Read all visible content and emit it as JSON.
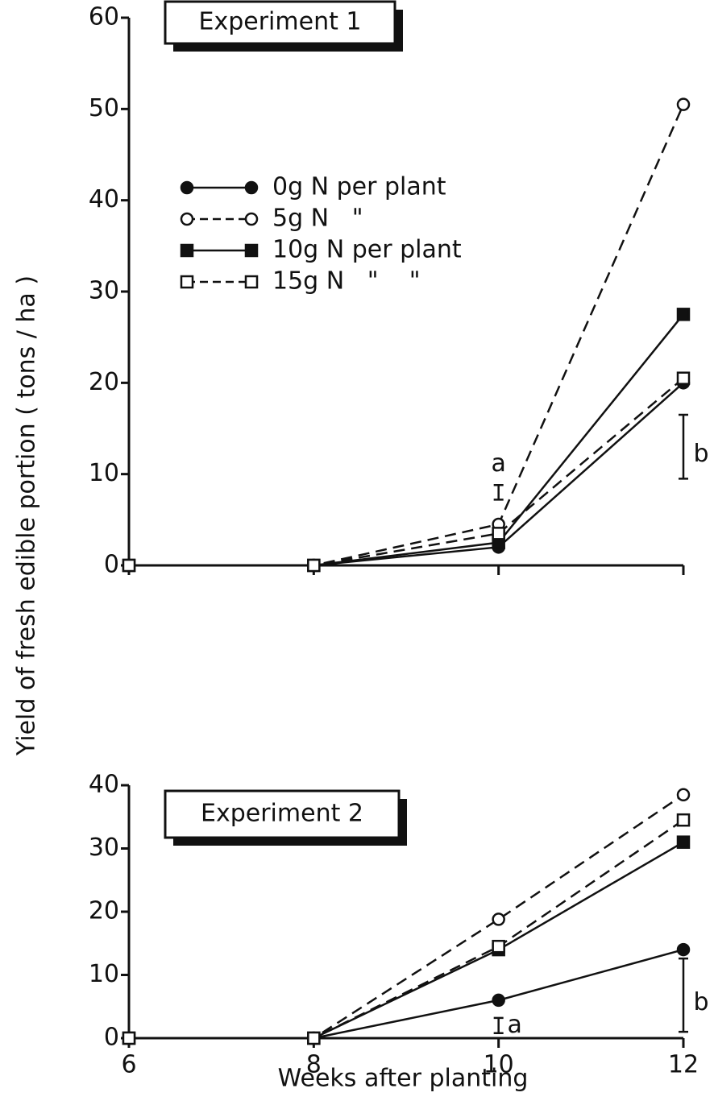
{
  "axis_labels": {
    "y": "Yield of fresh edible portion ( tons / ha )",
    "x": "Weeks after planting"
  },
  "chart_data": [
    {
      "type": "line",
      "title": "Experiment 1",
      "x": [
        6,
        8,
        10,
        12
      ],
      "xlim": [
        6,
        12
      ],
      "xticks": [
        6,
        8,
        10,
        12
      ],
      "xtick_labels": false,
      "ylim": [
        0,
        60
      ],
      "yticks": [
        0,
        10,
        20,
        30,
        40,
        50,
        60
      ],
      "legend": true,
      "series": [
        {
          "name": "0g N per plant",
          "color": "#111111",
          "marker": "circle",
          "filled": true,
          "dashed": false,
          "values": [
            0,
            0,
            2,
            20
          ]
        },
        {
          "name": "5g N   \"",
          "color": "#111111",
          "marker": "circle",
          "filled": false,
          "dashed": true,
          "values": [
            0,
            0,
            4.5,
            50.5
          ]
        },
        {
          "name": "10g N per plant",
          "color": "#111111",
          "marker": "square",
          "filled": true,
          "dashed": false,
          "values": [
            0,
            0,
            2.5,
            27.5
          ]
        },
        {
          "name": "15g N   \"    \"",
          "color": "#111111",
          "marker": "square",
          "filled": false,
          "dashed": true,
          "values": [
            0,
            0,
            3.5,
            20.5
          ]
        }
      ],
      "error_bars": [
        {
          "x": 10,
          "value": 8,
          "error": 0.8,
          "label": "a"
        },
        {
          "x": 12,
          "value": 13,
          "error": 3.5,
          "label": "b"
        }
      ]
    },
    {
      "type": "line",
      "title": "Experiment 2",
      "x": [
        6,
        8,
        10,
        12
      ],
      "xlim": [
        6,
        12
      ],
      "xticks": [
        6,
        8,
        10,
        12
      ],
      "xtick_labels": true,
      "ylim": [
        0,
        40
      ],
      "yticks": [
        0,
        10,
        20,
        30,
        40
      ],
      "legend": false,
      "series": [
        {
          "name": "0g N per plant",
          "color": "#111111",
          "marker": "circle",
          "filled": true,
          "dashed": false,
          "values": [
            0,
            0,
            6,
            14
          ]
        },
        {
          "name": "5g N   \"",
          "color": "#111111",
          "marker": "circle",
          "filled": false,
          "dashed": true,
          "values": [
            0,
            0,
            18.8,
            38.5
          ]
        },
        {
          "name": "10g N per plant",
          "color": "#111111",
          "marker": "square",
          "filled": true,
          "dashed": false,
          "values": [
            0,
            0,
            14,
            31
          ]
        },
        {
          "name": "15g N   \"    \"",
          "color": "#111111",
          "marker": "square",
          "filled": false,
          "dashed": true,
          "values": [
            0,
            0,
            14.5,
            34.5
          ]
        }
      ],
      "error_bars": [
        {
          "x": 10,
          "value": 2,
          "error": 1.2,
          "label": "a"
        },
        {
          "x": 12,
          "value": 6.8,
          "error": 5.8,
          "label": "b"
        }
      ]
    }
  ]
}
